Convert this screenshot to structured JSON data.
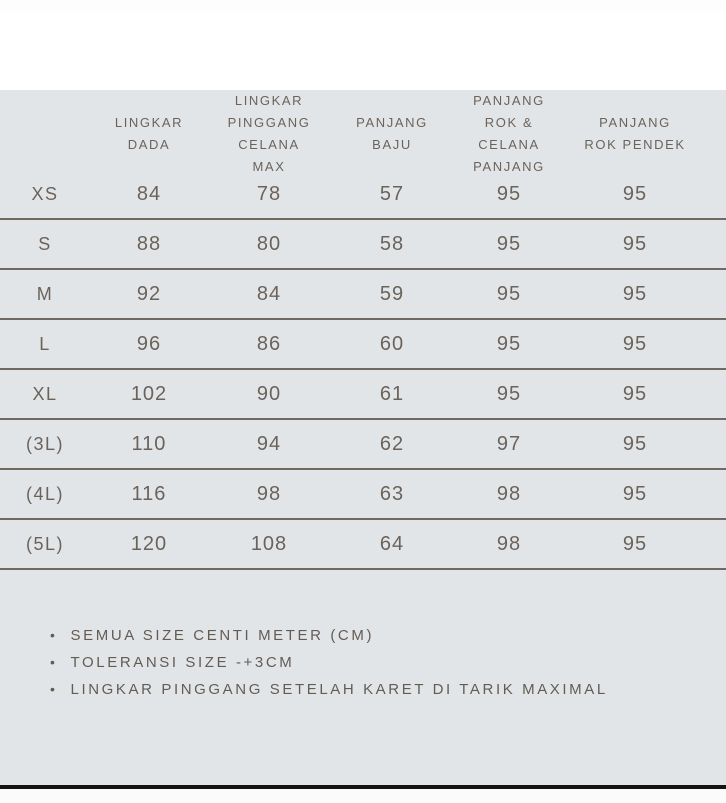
{
  "colors": {
    "background": "#e2e5e8",
    "text": "#6b635a",
    "divider": "#6f6962",
    "bottom_bar": "#141414",
    "frame": "#ffffff"
  },
  "table": {
    "headers": [
      "",
      "LINGKAR\nDADA",
      "LINGKAR\nPINGGANG\nCELANA\nMAX",
      "PANJANG\nBAJU",
      "PANJANG\nROK &\nCELANA\nPANJANG",
      "PANJANG\nROK PENDEK"
    ],
    "rows": [
      {
        "size": "XS",
        "values": [
          "84",
          "78",
          "57",
          "95",
          "95"
        ]
      },
      {
        "size": "S",
        "values": [
          "88",
          "80",
          "58",
          "95",
          "95"
        ]
      },
      {
        "size": "M",
        "values": [
          "92",
          "84",
          "59",
          "95",
          "95"
        ]
      },
      {
        "size": "L",
        "values": [
          "96",
          "86",
          "60",
          "95",
          "95"
        ]
      },
      {
        "size": "XL",
        "values": [
          "102",
          "90",
          "61",
          "95",
          "95"
        ]
      },
      {
        "size": "(3L)",
        "values": [
          "110",
          "94",
          "62",
          "97",
          "95"
        ]
      },
      {
        "size": "(4L)",
        "values": [
          "116",
          "98",
          "63",
          "98",
          "95"
        ]
      },
      {
        "size": "(5L)",
        "values": [
          "120",
          "108",
          "64",
          "98",
          "95"
        ]
      }
    ]
  },
  "notes": {
    "bullet": "•",
    "items": [
      "SEMUA SIZE CENTI METER (CM)",
      "TOLERANSI SIZE -+3CM",
      "LINGKAR PINGGANG SETELAH KARET DI TARIK MAXIMAL"
    ]
  }
}
